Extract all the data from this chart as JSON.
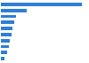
{
  "values": [
    100,
    32,
    19,
    16,
    14,
    13,
    11,
    10,
    8,
    4
  ],
  "bar_color": "#2f7ed8",
  "background_color": "#ffffff",
  "grid_color": "#d0d0d0",
  "n_bars": 10,
  "xlim": [
    0,
    108
  ],
  "bar_height": 0.55,
  "figsize": [
    1.0,
    0.71
  ],
  "dpi": 100
}
